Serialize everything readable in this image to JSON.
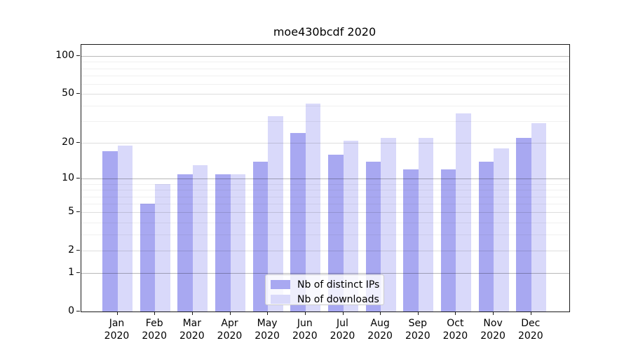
{
  "chart_data": {
    "type": "bar",
    "title": "moe430bcdf 2020",
    "categories": [
      "Jan 2020",
      "Feb 2020",
      "Mar 2020",
      "Apr 2020",
      "May 2020",
      "Jun 2020",
      "Jul 2020",
      "Aug 2020",
      "Sep 2020",
      "Oct 2020",
      "Nov 2020",
      "Dec 2020"
    ],
    "x_tick_months": [
      "Jan",
      "Feb",
      "Mar",
      "Apr",
      "May",
      "Jun",
      "Jul",
      "Aug",
      "Sep",
      "Oct",
      "Nov",
      "Dec"
    ],
    "x_tick_year": "2020",
    "series": [
      {
        "name": "Nb of distinct IPs",
        "color": "#a8a8f1",
        "values": [
          17,
          6,
          11,
          11,
          14,
          24,
          16,
          14,
          12,
          12,
          14,
          22
        ]
      },
      {
        "name": "Nb of downloads",
        "color": "#d9d9fa",
        "values": [
          19,
          9,
          13,
          11,
          33,
          42,
          21,
          22,
          22,
          35,
          18,
          29
        ]
      }
    ],
    "yscale": "log1p",
    "ylim": [
      0,
      123
    ],
    "y_ticks": [
      0,
      1,
      2,
      5,
      10,
      20,
      50,
      100
    ],
    "y_minor_ticks": [
      3,
      4,
      6,
      7,
      8,
      9,
      30,
      40,
      60,
      70,
      80,
      90
    ],
    "grid": true,
    "legend_position": "lower center",
    "background": "#ffffff",
    "axis_color": "#1a1a1a"
  }
}
